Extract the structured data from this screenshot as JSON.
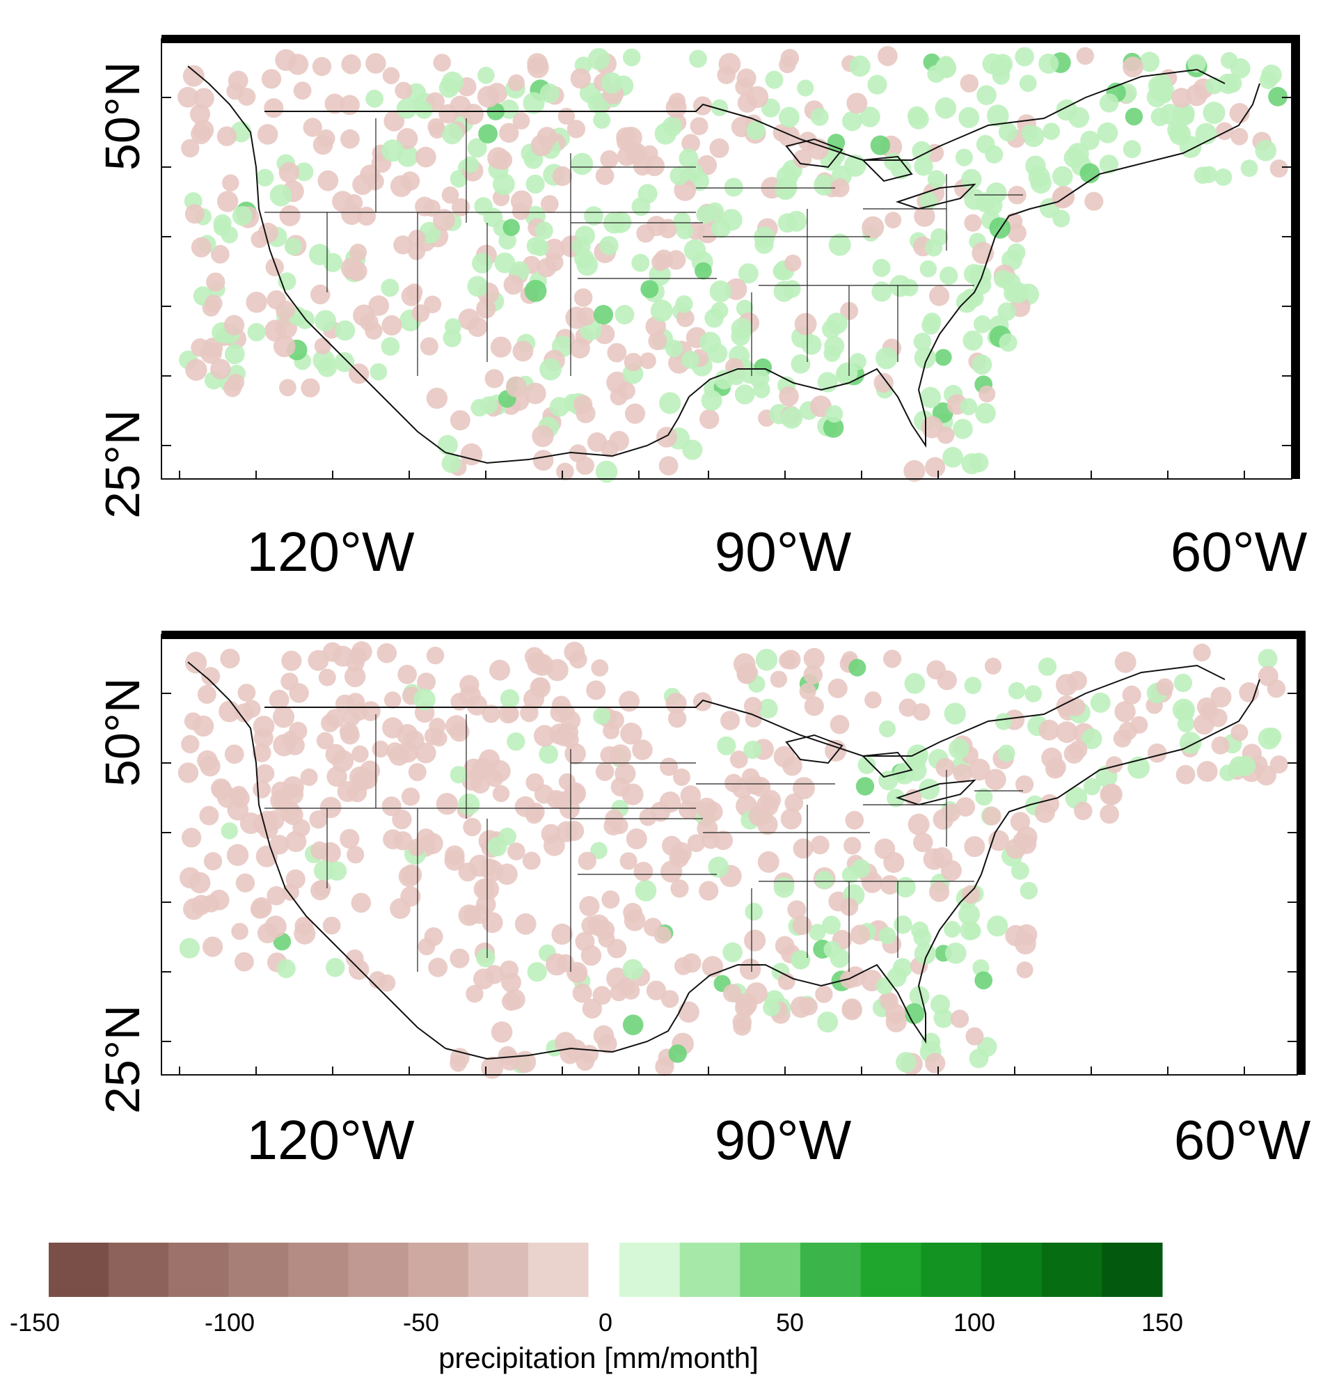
{
  "maps": [
    {
      "id": "top",
      "lat_labels": [
        "50°N",
        "25°N"
      ],
      "lon_labels": [
        "120°W",
        "90°W",
        "60°W"
      ]
    },
    {
      "id": "bottom",
      "lat_labels": [
        "50°N",
        "25°N"
      ],
      "lon_labels": [
        "120°W",
        "90°W",
        "60°W"
      ]
    }
  ],
  "colorbar": {
    "title": "precipitation [mm/month]",
    "ticks": [
      "-150",
      "-100",
      "-50",
      "0",
      "50",
      "100",
      "150"
    ],
    "negative_colors": [
      "#7a4f48",
      "#8d625a",
      "#9c726a",
      "#a87f77",
      "#b58c84",
      "#c09a92",
      "#cda9a2",
      "#dcbcb6",
      "#ead2cd"
    ],
    "positive_colors": [
      "#d6f8d6",
      "#a6e8a8",
      "#75d37a",
      "#3bb44a",
      "#1fa62d",
      "#139322",
      "#0a8019",
      "#066d13",
      "#035a0e"
    ]
  },
  "colors": {
    "dry": "#e8c8c2",
    "wet": "#bdf0bd",
    "wet_strong": "#6ed47a",
    "outline": "#111111"
  }
}
